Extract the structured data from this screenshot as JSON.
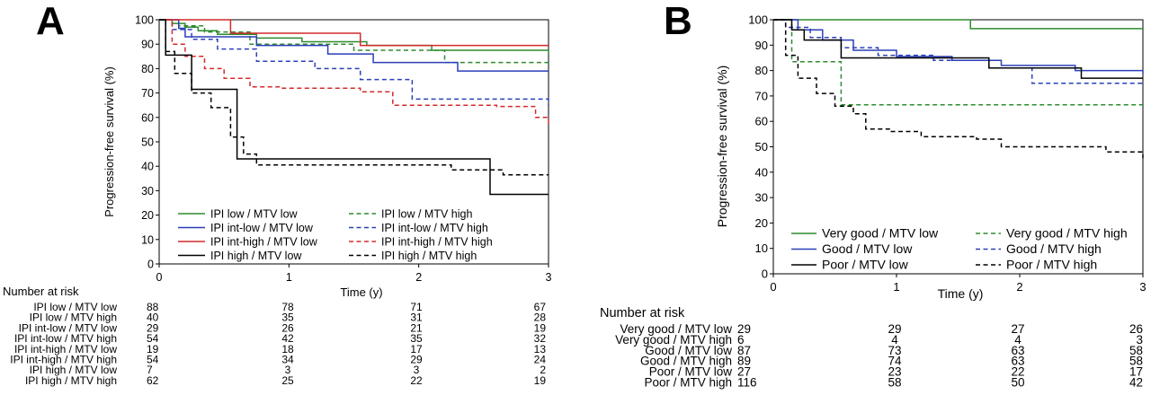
{
  "chart_data": [
    {
      "type": "line",
      "panel_label": "A",
      "xlabel": "Time (y)",
      "ylabel": "Progression-free survival (%)",
      "xlim": [
        0,
        3
      ],
      "ylim": [
        0,
        100
      ],
      "xticks": [
        "0",
        "1",
        "2",
        "3"
      ],
      "yticks": [
        "0",
        "10",
        "20",
        "30",
        "40",
        "50",
        "60",
        "70",
        "80",
        "90",
        "100"
      ],
      "grid": false,
      "legend_position": "bottom",
      "risk_table_title": "Number at risk",
      "series": [
        {
          "name": "IPI low / MTV low",
          "color": "#2e8b2e",
          "dash": "solid",
          "x": [
            0,
            0.1,
            0.2,
            0.3,
            0.45,
            0.75,
            1.1,
            1.6,
            2.1,
            3
          ],
          "y": [
            100,
            98.5,
            97,
            95.5,
            94,
            92.5,
            91,
            89.5,
            87.5,
            86
          ],
          "risk": [
            "88",
            "78",
            "71",
            "67"
          ]
        },
        {
          "name": "IPI low / MTV high",
          "color": "#2e8b2e",
          "dash": "dash",
          "x": [
            0,
            0.15,
            0.35,
            0.7,
            1.5,
            2.2,
            3
          ],
          "y": [
            100,
            97.5,
            95,
            90,
            87.5,
            82.5,
            82.5
          ],
          "risk": [
            "40",
            "35",
            "31",
            "28"
          ]
        },
        {
          "name": "IPI int-low / MTV low",
          "color": "#2b3fb8",
          "dash": "solid",
          "x": [
            0,
            0.15,
            0.2,
            0.5,
            0.75,
            1.05,
            1.3,
            1.65,
            2.3,
            3
          ],
          "y": [
            100,
            96.5,
            93,
            93,
            89.5,
            89.5,
            86,
            82.5,
            79,
            79
          ],
          "risk": [
            "29",
            "26",
            "21",
            "19"
          ]
        },
        {
          "name": "IPI int-low / MTV high",
          "color": "#2b3fb8",
          "dash": "dash",
          "x": [
            0,
            0.1,
            0.25,
            0.45,
            0.75,
            1.2,
            1.55,
            1.95,
            3
          ],
          "y": [
            100,
            96,
            92,
            88,
            83,
            80,
            75.5,
            67.5,
            65
          ],
          "risk": [
            "54",
            "42",
            "35",
            "32"
          ]
        },
        {
          "name": "IPI int-high / MTV low",
          "color": "#d42a2a",
          "dash": "solid",
          "x": [
            0,
            0.5,
            0.55,
            1.0,
            1.55,
            3
          ],
          "y": [
            100,
            100,
            94.5,
            94.5,
            89.5,
            89.5
          ],
          "risk": [
            "19",
            "18",
            "17",
            "13"
          ]
        },
        {
          "name": "IPI int-high / MTV high",
          "color": "#d42a2a",
          "dash": "dash",
          "x": [
            0,
            0.1,
            0.2,
            0.35,
            0.5,
            0.7,
            0.95,
            1.55,
            1.8,
            2.6,
            2.9,
            3
          ],
          "y": [
            100,
            90,
            85,
            80,
            76,
            72.5,
            72,
            70.5,
            65,
            64.5,
            60,
            57.5
          ],
          "risk": [
            "54",
            "34",
            "29",
            "24"
          ]
        },
        {
          "name": "IPI high / MTV low",
          "color": "#000000",
          "dash": "solid",
          "x": [
            0,
            0.05,
            0.2,
            0.25,
            0.55,
            0.6,
            2.5,
            2.55,
            3
          ],
          "y": [
            100,
            85.5,
            85.5,
            71.5,
            71.5,
            43,
            43,
            28.5,
            28.5
          ],
          "risk": [
            "7",
            "3",
            "3",
            "2"
          ]
        },
        {
          "name": "IPI high / MTV high",
          "color": "#000000",
          "dash": "dash",
          "x": [
            0,
            0.05,
            0.12,
            0.25,
            0.4,
            0.55,
            0.65,
            0.75,
            1.95,
            2.25,
            2.65,
            3
          ],
          "y": [
            100,
            87,
            78,
            70,
            64,
            52,
            45,
            40.5,
            40.5,
            38.5,
            36.5,
            36.5
          ],
          "risk": [
            "62",
            "25",
            "22",
            "19"
          ]
        }
      ]
    },
    {
      "type": "line",
      "panel_label": "B",
      "xlabel": "Time (y)",
      "ylabel": "Progression-free survival (%)",
      "xlim": [
        0,
        3
      ],
      "ylim": [
        0,
        100
      ],
      "xticks": [
        "0",
        "1",
        "2",
        "3"
      ],
      "yticks": [
        "0",
        "10",
        "20",
        "30",
        "40",
        "50",
        "60",
        "70",
        "80",
        "90",
        "100"
      ],
      "grid": false,
      "legend_position": "bottom",
      "risk_table_title": "Number at risk",
      "series": [
        {
          "name": "Very good / MTV low",
          "color": "#2e8b2e",
          "dash": "solid",
          "x": [
            0,
            1.55,
            1.6,
            3
          ],
          "y": [
            100,
            100,
            96.5,
            96.5
          ],
          "risk": [
            "29",
            "29",
            "27",
            "26"
          ]
        },
        {
          "name": "Very good / MTV high",
          "color": "#2e8b2e",
          "dash": "dash",
          "x": [
            0,
            0.15,
            0.5,
            0.55,
            3
          ],
          "y": [
            100,
            83.5,
            83.5,
            66.5,
            66.5
          ],
          "risk": [
            "6",
            "4",
            "4",
            "3"
          ]
        },
        {
          "name": "Good / MTV low",
          "color": "#2b3fb8",
          "dash": "solid",
          "x": [
            0,
            0.2,
            0.4,
            0.65,
            1.0,
            1.45,
            1.85,
            2.45,
            3
          ],
          "y": [
            100,
            96,
            92,
            88,
            85.5,
            84,
            82,
            80,
            78.5
          ],
          "risk": [
            "87",
            "73",
            "63",
            "58"
          ]
        },
        {
          "name": "Good / MTV high",
          "color": "#2b3fb8",
          "dash": "dash",
          "x": [
            0,
            0.1,
            0.3,
            0.55,
            0.85,
            1.3,
            1.75,
            2.1,
            3
          ],
          "y": [
            100,
            97,
            93,
            89,
            86,
            84,
            81,
            75,
            75
          ],
          "risk": [
            "89",
            "74",
            "63",
            "58"
          ]
        },
        {
          "name": "Poor / MTV low",
          "color": "#000000",
          "dash": "solid",
          "x": [
            0,
            0.15,
            0.25,
            0.5,
            0.55,
            1.35,
            1.75,
            2.5,
            3
          ],
          "y": [
            100,
            96,
            92,
            92,
            85,
            85,
            81,
            77,
            77
          ],
          "risk": [
            "27",
            "23",
            "22",
            "17"
          ]
        },
        {
          "name": "Poor / MTV high",
          "color": "#000000",
          "dash": "dash",
          "x": [
            0,
            0.1,
            0.2,
            0.35,
            0.5,
            0.65,
            0.75,
            0.95,
            1.2,
            1.65,
            1.85,
            2.7,
            3
          ],
          "y": [
            100,
            86,
            77,
            71,
            66,
            63,
            57,
            56,
            54,
            53,
            50,
            48,
            45.5
          ],
          "risk": [
            "116",
            "58",
            "50",
            "42"
          ]
        }
      ]
    }
  ]
}
